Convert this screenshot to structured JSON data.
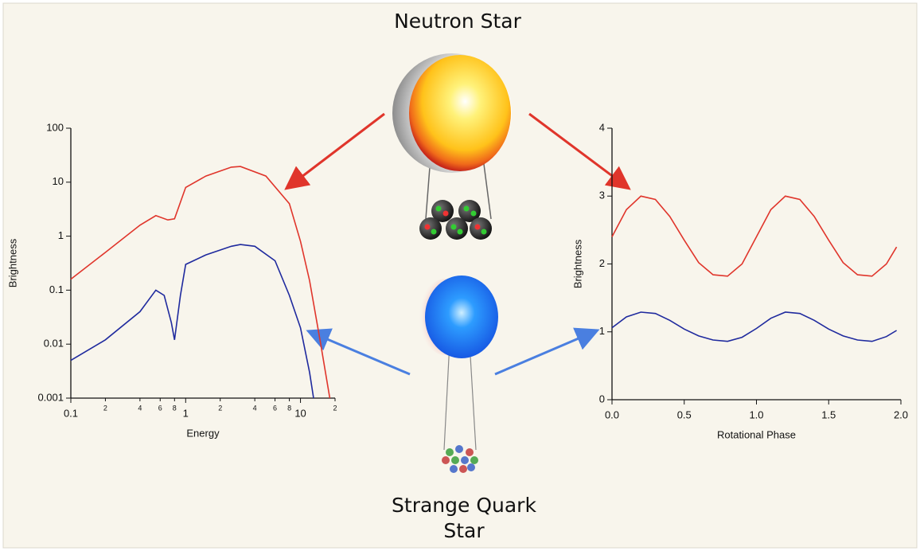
{
  "labels": {
    "neutron_star": "Neutron Star",
    "strange_star": [
      "Strange Quark",
      "Star"
    ]
  },
  "chart_data": [
    {
      "type": "line",
      "xlabel": "Energy",
      "ylabel": "Brightness",
      "log_x": true,
      "log_y": true,
      "xlim": [
        0.1,
        20
      ],
      "ylim": [
        0.001,
        100
      ],
      "xticks": [
        0.1,
        {
          "value": 0.2,
          "label": "2"
        },
        {
          "value": 0.4,
          "label": "4"
        },
        {
          "value": 0.6,
          "label": "6"
        },
        {
          "value": 0.8,
          "label": "8"
        },
        1,
        {
          "value": 2,
          "label": "2"
        },
        {
          "value": 4,
          "label": "4"
        },
        {
          "value": 6,
          "label": "6"
        },
        {
          "value": 8,
          "label": "8"
        },
        10,
        {
          "value": 20,
          "label": "2"
        }
      ],
      "yticks": [
        0.001,
        0.01,
        0.1,
        1,
        10,
        100
      ],
      "series": [
        {
          "color": "#e0352b",
          "x": [
            0.1,
            0.2,
            0.4,
            0.55,
            0.7,
            0.8,
            1,
            1.5,
            2.5,
            3,
            5,
            8,
            10,
            12,
            15,
            18
          ],
          "values": [
            0.16,
            0.5,
            1.6,
            2.4,
            2.0,
            2.1,
            8,
            13,
            19,
            19.5,
            13,
            4,
            0.8,
            0.15,
            0.01,
            0.001
          ]
        },
        {
          "color": "#1f2a9e",
          "x": [
            0.1,
            0.2,
            0.4,
            0.55,
            0.65,
            0.75,
            0.8,
            0.9,
            1,
            1.5,
            2.5,
            3,
            4,
            6,
            8,
            10,
            12,
            13
          ],
          "values": [
            0.005,
            0.012,
            0.04,
            0.1,
            0.08,
            0.025,
            0.012,
            0.08,
            0.3,
            0.45,
            0.65,
            0.7,
            0.65,
            0.35,
            0.08,
            0.02,
            0.003,
            0.001
          ]
        }
      ]
    },
    {
      "type": "line",
      "xlabel": "Rotational Phase",
      "ylabel": "Brightness",
      "xlim": [
        0,
        2
      ],
      "ylim": [
        0,
        4
      ],
      "xticks": [
        {
          "value": 0,
          "label": "0.0"
        },
        0.5,
        {
          "value": 1,
          "label": "1.0"
        },
        1.5,
        {
          "value": 2,
          "label": "2.0"
        }
      ],
      "yticks": [
        0,
        1,
        2,
        3,
        4
      ],
      "series": [
        {
          "color": "#e0352b",
          "x": [
            0,
            0.1,
            0.2,
            0.3,
            0.4,
            0.5,
            0.6,
            0.7,
            0.8,
            0.9,
            1.0,
            1.1,
            1.2,
            1.3,
            1.4,
            1.5,
            1.6,
            1.7,
            1.8,
            1.9,
            1.97
          ],
          "values": [
            2.4,
            2.8,
            3.0,
            2.95,
            2.7,
            2.35,
            2.02,
            1.84,
            1.82,
            2.0,
            2.4,
            2.8,
            3.0,
            2.95,
            2.7,
            2.35,
            2.02,
            1.84,
            1.82,
            2.0,
            2.25
          ]
        },
        {
          "color": "#1f2a9e",
          "x": [
            0,
            0.1,
            0.2,
            0.3,
            0.4,
            0.5,
            0.6,
            0.7,
            0.8,
            0.9,
            1.0,
            1.1,
            1.2,
            1.3,
            1.4,
            1.5,
            1.6,
            1.7,
            1.8,
            1.9,
            1.97
          ],
          "values": [
            1.06,
            1.22,
            1.29,
            1.27,
            1.17,
            1.04,
            0.94,
            0.88,
            0.86,
            0.92,
            1.05,
            1.2,
            1.29,
            1.27,
            1.17,
            1.04,
            0.94,
            0.88,
            0.86,
            0.93,
            1.02
          ]
        }
      ]
    }
  ]
}
